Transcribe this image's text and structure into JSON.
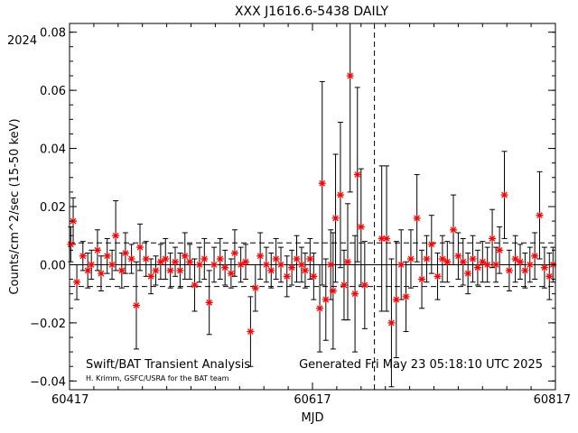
{
  "chart_data": {
    "type": "scatter",
    "title": "XXX J1616.6-5438 DAILY",
    "year_label": "2024",
    "xlabel": "MJD",
    "ylabel": "Counts/cm^2/sec (15-50 keV)",
    "xlim": [
      60417,
      60817
    ],
    "ylim": [
      -0.043,
      0.083
    ],
    "x_ticks": [
      60417,
      60617,
      60817
    ],
    "x_tick_labels": [
      "60417",
      "60617",
      "60817"
    ],
    "y_ticks": [
      -0.04,
      -0.02,
      0.0,
      0.02,
      0.04,
      0.06,
      0.08
    ],
    "y_tick_labels": [
      "−0.04",
      "−0.02",
      "0.00",
      "0.02",
      "0.04",
      "0.06",
      "0.08"
    ],
    "reference_lines": [
      {
        "kind": "horizontal",
        "style": "solid",
        "y": 0.0
      },
      {
        "kind": "horizontal",
        "style": "dashed",
        "y": 0.0075
      },
      {
        "kind": "horizontal",
        "style": "dashed",
        "y": -0.0075
      },
      {
        "kind": "vertical",
        "style": "dashed",
        "x": 60668
      }
    ],
    "marker": "asterisk",
    "marker_color": "#ff0000",
    "grid": false,
    "series": [
      {
        "x": [
          60418,
          60420,
          60423,
          60428,
          60432,
          60435,
          60440,
          60443,
          60448,
          60452,
          60455,
          60460,
          60463,
          60468,
          60472,
          60475,
          60480,
          60484,
          60488,
          60492,
          60496,
          60500,
          60504,
          60508,
          60512,
          60516,
          60520,
          60524,
          60528,
          60532,
          60536,
          60541,
          60545,
          60550,
          60553,
          60558,
          60562,
          60566,
          60570,
          60574,
          60579,
          60583,
          60587,
          60591,
          60596,
          60600,
          60604,
          60608,
          60611,
          60615,
          60618,
          60623,
          60625,
          60628,
          60632,
          60634,
          60636,
          60640,
          60643,
          60646,
          60648,
          60652,
          60654,
          60657,
          60660,
          60674,
          60678,
          60682,
          60686,
          60690,
          60694,
          60698,
          60703,
          60707,
          60711,
          60715,
          60720,
          60724,
          60728,
          60733,
          60737,
          60741,
          60745,
          60749,
          60753,
          60757,
          60761,
          60765,
          60768,
          60771,
          60775,
          60779,
          60784,
          60788,
          60792,
          60796,
          60800,
          60804,
          60808,
          60812,
          60815
        ],
        "y": [
          0.007,
          0.015,
          -0.006,
          0.003,
          -0.002,
          0.0,
          0.005,
          -0.003,
          0.003,
          0.0,
          0.01,
          -0.002,
          0.004,
          0.002,
          -0.014,
          0.006,
          0.002,
          -0.004,
          -0.002,
          0.001,
          0.002,
          -0.002,
          0.001,
          -0.002,
          0.003,
          0.001,
          -0.007,
          0.0,
          0.002,
          -0.013,
          0.0,
          0.002,
          -0.001,
          -0.003,
          0.004,
          0.0,
          0.001,
          -0.023,
          -0.008,
          0.003,
          0.0,
          -0.002,
          0.002,
          0.0,
          -0.004,
          -0.001,
          0.002,
          0.0,
          -0.002,
          0.002,
          -0.004,
          -0.015,
          0.028,
          -0.012,
          0.0,
          -0.009,
          0.016,
          0.024,
          -0.007,
          0.001,
          0.065,
          -0.01,
          0.031,
          0.013,
          -0.007,
          0.009,
          0.009,
          -0.02,
          -0.012,
          0.0,
          -0.011,
          0.002,
          0.016,
          -0.005,
          0.002,
          0.007,
          -0.004,
          0.002,
          0.001,
          0.012,
          0.003,
          0.001,
          -0.003,
          0.002,
          -0.001,
          0.001,
          0.0,
          0.009,
          0.0,
          0.005,
          0.024,
          -0.002,
          0.002,
          0.001,
          -0.002,
          0.0,
          0.003,
          0.017,
          -0.001,
          -0.004,
          0.0
        ],
        "err": [
          0.006,
          0.008,
          0.006,
          0.005,
          0.006,
          0.005,
          0.007,
          0.006,
          0.006,
          0.005,
          0.012,
          0.006,
          0.007,
          0.005,
          0.015,
          0.008,
          0.006,
          0.006,
          0.005,
          0.006,
          0.007,
          0.006,
          0.005,
          0.006,
          0.008,
          0.006,
          0.009,
          0.006,
          0.007,
          0.011,
          0.006,
          0.007,
          0.006,
          0.005,
          0.008,
          0.006,
          0.006,
          0.012,
          0.008,
          0.008,
          0.006,
          0.006,
          0.007,
          0.006,
          0.007,
          0.006,
          0.008,
          0.006,
          0.006,
          0.007,
          0.008,
          0.015,
          0.035,
          0.014,
          0.012,
          0.02,
          0.022,
          0.025,
          0.012,
          0.02,
          0.04,
          0.02,
          0.03,
          0.02,
          0.015,
          0.025,
          0.025,
          0.022,
          0.02,
          0.012,
          0.012,
          0.01,
          0.015,
          0.01,
          0.008,
          0.01,
          0.008,
          0.008,
          0.007,
          0.012,
          0.008,
          0.008,
          0.007,
          0.008,
          0.006,
          0.007,
          0.006,
          0.01,
          0.006,
          0.008,
          0.015,
          0.007,
          0.008,
          0.006,
          0.006,
          0.006,
          0.008,
          0.015,
          0.007,
          0.008,
          0.006
        ]
      }
    ]
  },
  "footer": {
    "left_line1": "Swift/BAT Transient Analysis",
    "left_line2": "H. Krimm, GSFC/USRA for the BAT team",
    "right": "Generated Fri May 23 05:18:10 UTC 2025"
  }
}
